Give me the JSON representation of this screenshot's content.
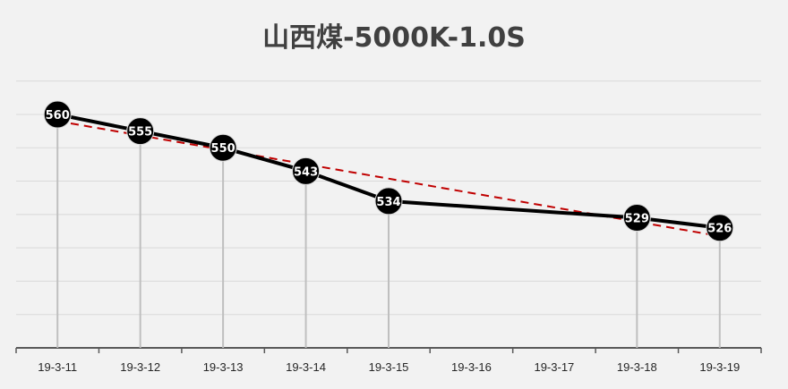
{
  "chart_data": {
    "type": "line",
    "title": "山西煤-5000K-1.0S",
    "categories": [
      "19-3-11",
      "19-3-12",
      "19-3-13",
      "19-3-14",
      "19-3-15",
      "19-3-16",
      "19-3-17",
      "19-3-18",
      "19-3-19"
    ],
    "series": [
      {
        "values": [
          560,
          555,
          550,
          543,
          534,
          null,
          null,
          529,
          526
        ]
      }
    ],
    "trendline": {
      "from": 558,
      "to": 523.5,
      "style": "dashed"
    },
    "ylim": [
      490,
      575
    ],
    "gridlines": [
      500,
      510,
      520,
      530,
      540,
      550,
      560,
      570
    ],
    "grid": true,
    "legend": "none",
    "colors": {
      "line": "#000000",
      "marker": "#000000",
      "trendline": "#c00000",
      "dropline": "#bfbfbf",
      "grid": "#d9d9d9",
      "axis": "#595959",
      "background": "#f2f2f2"
    }
  }
}
